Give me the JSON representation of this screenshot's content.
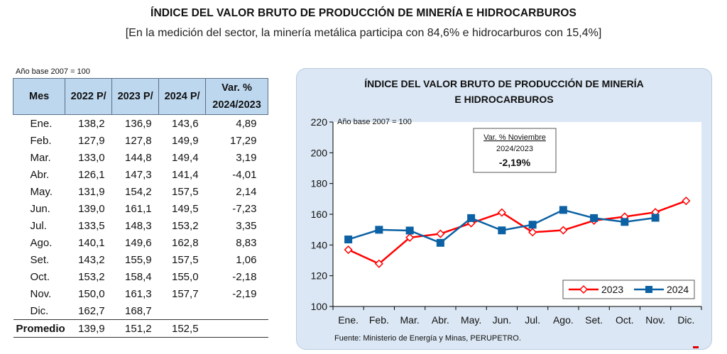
{
  "header": {
    "title": "ÍNDICE DEL VALOR BRUTO DE PRODUCCIÓN DE MINERÍA E HIDROCARBUROS",
    "subtitle": "[En la medición del sector, la minería metálica participa con 84,6% e hidrocarburos con 15,4%]"
  },
  "table": {
    "base_note": "Año base 2007 = 100",
    "headers": {
      "mes": "Mes",
      "y2022": "2022 P/",
      "y2023": "2023 P/",
      "y2024": "2024 P/",
      "var_line1": "Var. %",
      "var_line2": "2024/2023"
    },
    "rows": [
      {
        "mes": "Ene.",
        "v2022": "138,2",
        "v2023": "136,9",
        "v2024": "143,6",
        "var": "4,89"
      },
      {
        "mes": "Feb.",
        "v2022": "127,9",
        "v2023": "127,8",
        "v2024": "149,9",
        "var": "17,29"
      },
      {
        "mes": "Mar.",
        "v2022": "133,0",
        "v2023": "144,8",
        "v2024": "149,4",
        "var": "3,19"
      },
      {
        "mes": "Abr.",
        "v2022": "126,1",
        "v2023": "147,3",
        "v2024": "141,4",
        "var": "-4,01"
      },
      {
        "mes": "May.",
        "v2022": "131,9",
        "v2023": "154,2",
        "v2024": "157,5",
        "var": "2,14"
      },
      {
        "mes": "Jun.",
        "v2022": "139,0",
        "v2023": "161,1",
        "v2024": "149,5",
        "var": "-7,23"
      },
      {
        "mes": "Jul.",
        "v2022": "133,5",
        "v2023": "148,3",
        "v2024": "153,2",
        "var": "3,35"
      },
      {
        "mes": "Ago.",
        "v2022": "140,1",
        "v2023": "149,6",
        "v2024": "162,8",
        "var": "8,83"
      },
      {
        "mes": "Set.",
        "v2022": "143,2",
        "v2023": "155,9",
        "v2024": "157,5",
        "var": "1,06"
      },
      {
        "mes": "Oct.",
        "v2022": "153,2",
        "v2023": "158,4",
        "v2024": "155,0",
        "var": "-2,18"
      },
      {
        "mes": "Nov.",
        "v2022": "150,0",
        "v2023": "161,3",
        "v2024": "157,7",
        "var": "-2,19"
      },
      {
        "mes": "Dic.",
        "v2022": "162,7",
        "v2023": "168,7",
        "v2024": "",
        "var": ""
      }
    ],
    "promedio": {
      "mes": "Promedio",
      "v2022": "139,9",
      "v2023": "151,2",
      "v2024": "152,5"
    }
  },
  "chart_data": {
    "type": "line",
    "title_line1": "ÍNDICE DEL VALOR BRUTO DE PRODUCCIÓN DE MINERÍA",
    "title_line2": "E HIDROCARBUROS",
    "base_label": "Año base  2007  =  100",
    "categories": [
      "Ene.",
      "Feb.",
      "Mar.",
      "Abr.",
      "May.",
      "Jun.",
      "Jul.",
      "Ago.",
      "Set.",
      "Oct.",
      "Nov.",
      "Dic."
    ],
    "series": [
      {
        "name": "2023",
        "values": [
          136.9,
          127.8,
          144.8,
          147.3,
          154.2,
          161.1,
          148.3,
          149.6,
          155.9,
          158.4,
          161.3,
          168.7
        ],
        "color": "#ff0000",
        "marker": "diamond"
      },
      {
        "name": "2024",
        "values": [
          143.6,
          149.9,
          149.4,
          141.4,
          157.5,
          149.5,
          153.2,
          162.8,
          157.5,
          155.0,
          157.7,
          null
        ],
        "color": "#0b61a4",
        "marker": "square"
      }
    ],
    "ylim": [
      100,
      220
    ],
    "yticks": [
      100,
      120,
      140,
      160,
      180,
      200,
      220
    ],
    "legend_position": "bottom-right",
    "grid": false,
    "annotation": {
      "line1": "Var. % Noviembre",
      "line2": "2024/2023",
      "line3": "-2,19%"
    },
    "source": "Fuente: Ministerio de Energía y Minas, PERUPETRO."
  }
}
